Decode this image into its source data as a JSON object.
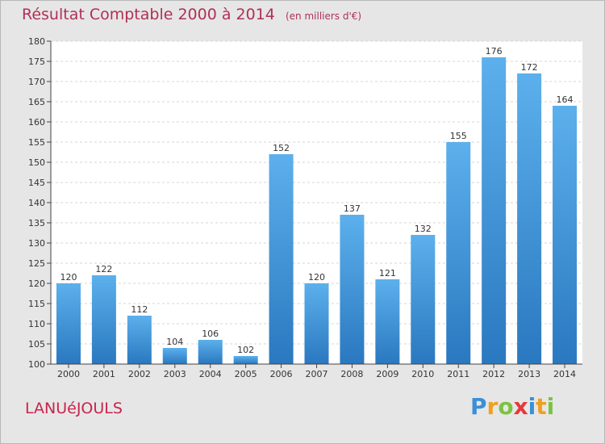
{
  "chart_data": {
    "type": "bar",
    "title": "Résultat Comptable 2000 à 2014",
    "subtitle": "(en milliers d'€)",
    "categories": [
      "2000",
      "2001",
      "2002",
      "2003",
      "2004",
      "2005",
      "2006",
      "2007",
      "2008",
      "2009",
      "2010",
      "2011",
      "2012",
      "2013",
      "2014"
    ],
    "values": [
      120,
      122,
      112,
      104,
      106,
      102,
      152,
      120,
      137,
      121,
      132,
      155,
      176,
      172,
      164
    ],
    "xlabel": "",
    "ylabel": "",
    "ylim": [
      100,
      180
    ],
    "yticks": [
      100,
      105,
      110,
      115,
      120,
      125,
      130,
      135,
      140,
      145,
      150,
      155,
      160,
      165,
      170,
      175,
      180
    ],
    "grid": true,
    "bar_color": "#4a9ee0"
  },
  "commune": "LANUéJOULS",
  "logo": {
    "letters": [
      "P",
      "r",
      "o",
      "x",
      "i",
      "t",
      "i"
    ],
    "colors": [
      "#3a8fd6",
      "#f0a020",
      "#7cc242",
      "#e23b3b",
      "#3a8fd6",
      "#f0a020",
      "#7cc242"
    ]
  }
}
